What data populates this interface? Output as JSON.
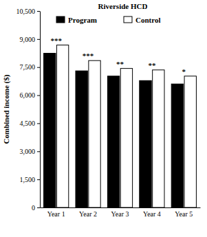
{
  "chart_data": {
    "type": "bar",
    "title": "Riverside HCD",
    "y_label": "Combined income ($)",
    "categories": [
      "Year 1",
      "Year 2",
      "Year 3",
      "Year 4",
      "Year 5"
    ],
    "series": [
      {
        "name": "Program",
        "color": "#000000",
        "values": [
          8240,
          7300,
          7020,
          6780,
          6600
        ]
      },
      {
        "name": "Control",
        "color": "#ffffff",
        "values": [
          8680,
          7850,
          7430,
          7350,
          7020
        ]
      }
    ],
    "annotations": [
      "***",
      "***",
      "**",
      "**",
      "*"
    ],
    "ylim": [
      0,
      10500
    ],
    "yticks": [
      0,
      {
        "value": 1500,
        "label": "1,500"
      },
      {
        "value": 3000,
        "label": "3,000"
      },
      {
        "value": 4500,
        "label": "4,500"
      },
      {
        "value": 6000,
        "label": "6,000"
      },
      {
        "value": 7500,
        "label": "7,500"
      },
      {
        "value": 9000,
        "label": "9,000"
      },
      {
        "value": 10500,
        "label": "10,500"
      }
    ],
    "legend": "top",
    "grid": false
  }
}
